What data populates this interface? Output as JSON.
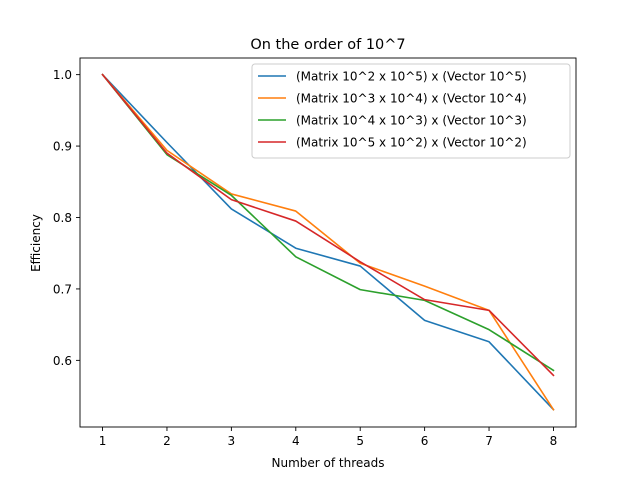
{
  "chart_data": {
    "type": "line",
    "title": "On the order of 10^7",
    "xlabel": "Number of threads",
    "ylabel": "Efficiency",
    "x": [
      1,
      2,
      3,
      4,
      5,
      6,
      7,
      8
    ],
    "xlim": [
      0.65,
      8.35
    ],
    "ylim": [
      0.5067,
      1.0233
    ],
    "xticks": [
      1,
      2,
      3,
      4,
      5,
      6,
      7,
      8
    ],
    "yticks": [
      0.6,
      0.7,
      0.8,
      0.9,
      1.0
    ],
    "ytick_labels": [
      "0.6",
      "0.7",
      "0.8",
      "0.9",
      "1.0"
    ],
    "grid": false,
    "legend_position": "upper right",
    "series": [
      {
        "name": "(Matrix 10^2 x 10^5) x (Vector 10^5)",
        "color": "#1f77b4",
        "values": [
          1.0,
          0.905,
          0.812,
          0.757,
          0.732,
          0.656,
          0.626,
          0.531
        ]
      },
      {
        "name": "(Matrix 10^3 x 10^4) x (Vector 10^4)",
        "color": "#ff7f0e",
        "values": [
          1.0,
          0.894,
          0.833,
          0.809,
          0.736,
          0.704,
          0.67,
          0.531
        ]
      },
      {
        "name": "(Matrix 10^4 x 10^3) x (Vector 10^3)",
        "color": "#2ca02c",
        "values": [
          1.0,
          0.888,
          0.831,
          0.745,
          0.699,
          0.684,
          0.643,
          0.586
        ]
      },
      {
        "name": "(Matrix 10^5 x 10^2) x (Vector 10^2)",
        "color": "#d62728",
        "values": [
          1.0,
          0.89,
          0.825,
          0.795,
          0.738,
          0.685,
          0.67,
          0.579
        ]
      }
    ]
  }
}
